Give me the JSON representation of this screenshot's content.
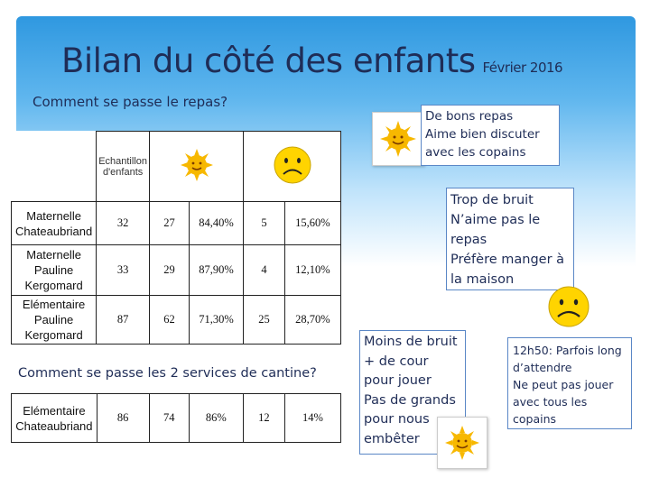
{
  "slide": {
    "title": "Bilan du côté des enfants",
    "date": "Février 2016",
    "question1": "Comment se passe le repas?",
    "question2": "Comment se passe les 2 services de cantine?"
  },
  "table1": {
    "header_label": "Echantillon d'enfants",
    "header_icons": [
      "sun-smiley-icon",
      "sad-face-icon"
    ],
    "rows": [
      {
        "label": "Maternelle Chateaubriand",
        "sample": "32",
        "happy": "27",
        "happy_pct": "84,40%",
        "unhappy": "5",
        "unhappy_pct": "15,60%"
      },
      {
        "label": "Maternelle Pauline Kergomard",
        "sample": "33",
        "happy": "29",
        "happy_pct": "87,90%",
        "unhappy": "4",
        "unhappy_pct": "12,10%"
      },
      {
        "label": "Elémentaire Pauline Kergomard",
        "sample": "87",
        "happy": "62",
        "happy_pct": "71,30%",
        "unhappy": "25",
        "unhappy_pct": "28,70%"
      }
    ]
  },
  "table2": {
    "rows": [
      {
        "label": "Elémentaire Chateaubriand",
        "sample": "86",
        "happy": "74",
        "happy_pct": "86%",
        "unhappy": "12",
        "unhappy_pct": "14%"
      }
    ]
  },
  "callouts": {
    "positive_meal": [
      "De bons repas",
      "Aime bien discuter avec les copains"
    ],
    "negative_meal": [
      "Trop de bruit",
      "N’aime pas le repas",
      "Préfère manger à la maison"
    ],
    "positive_services": [
      "Moins de bruit",
      "+ de cour pour jouer",
      "Pas de grands pour nous embêter"
    ],
    "negative_services": [
      "12h50: Parfois long d’attendre",
      "Ne peut pas jouer avec tous les copains"
    ]
  },
  "colors": {
    "title_text": "#1f2d57",
    "header_gradient_top": "#2f98e0",
    "callout_border": "#5a87c6",
    "sun": "#f7b800",
    "sad_face": "#ffd400"
  }
}
